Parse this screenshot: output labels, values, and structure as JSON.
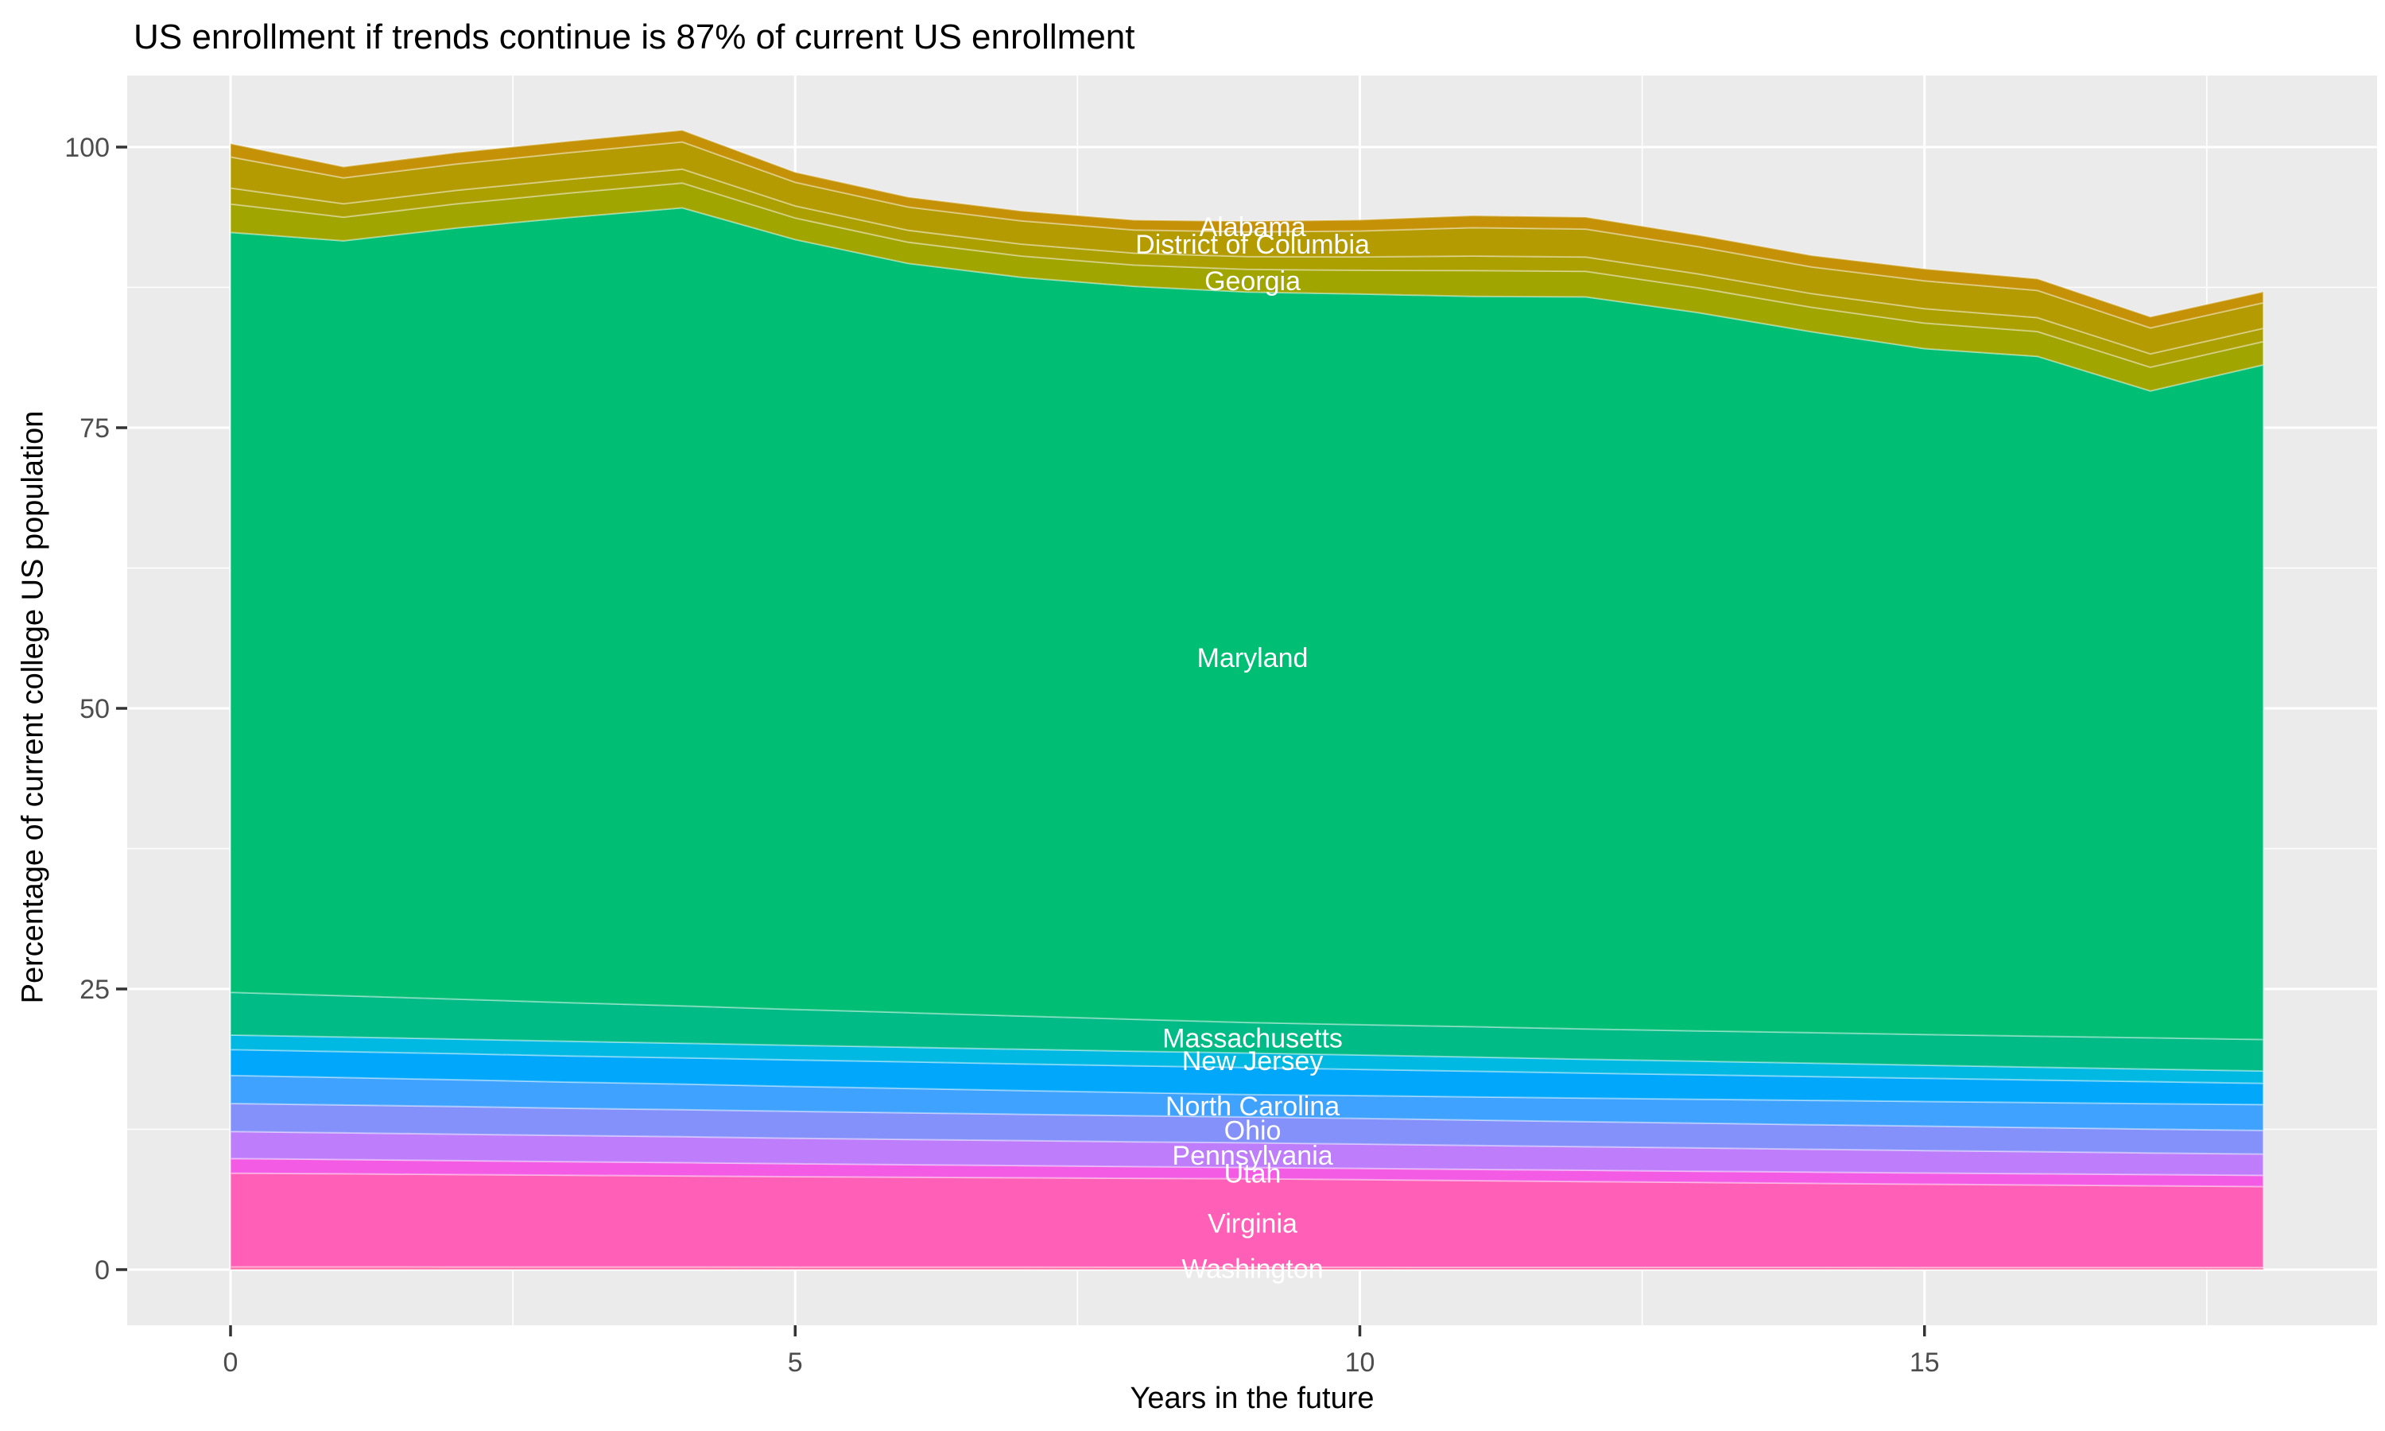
{
  "title": "US enrollment if trends continue is 87% of current US enrollment",
  "axes": {
    "x_label": "Years in the future",
    "y_label": "Percentage of current college US population",
    "x_tick_labels": [
      "0",
      "5",
      "10",
      "15"
    ],
    "y_tick_labels": [
      "0",
      "25",
      "50",
      "75",
      "100"
    ]
  },
  "colors": {
    "panel_background": "#EBEBEB",
    "grid_line": "#FFFFFF",
    "tick_text": "#4D4D4D",
    "tick_mark": "#333333",
    "axis_title_text": "#000000",
    "band_label_text": "#FFFFFF"
  },
  "chart_data": {
    "type": "area",
    "stacked": true,
    "title": "US enrollment if trends continue is 87% of current US enrollment",
    "xlabel": "Years in the future",
    "ylabel": "Percentage of current college US population",
    "x": [
      0,
      1,
      2,
      3,
      4,
      5,
      6,
      7,
      8,
      9,
      10,
      11,
      12,
      13,
      14,
      15,
      16,
      17,
      18
    ],
    "xlim": [
      0,
      18
    ],
    "ylim": [
      0,
      101.5
    ],
    "x_ticks": [
      0,
      5,
      10,
      15
    ],
    "x_minor_ticks": [
      2.5,
      7.5,
      12.5,
      17.5
    ],
    "y_ticks": [
      0,
      25,
      50,
      75,
      100
    ],
    "y_minor_ticks": [
      12.5,
      37.5,
      62.5,
      87.5
    ],
    "grid": true,
    "legend_position": "none",
    "label_year": 9.05,
    "end_total_percent": 87,
    "series": [
      {
        "name": "Washington",
        "label": "Washington",
        "color": "#FF6CA6",
        "values": [
          0.25,
          0.25,
          0.24,
          0.24,
          0.24,
          0.23,
          0.23,
          0.23,
          0.22,
          0.22,
          0.22,
          0.21,
          0.21,
          0.21,
          0.21,
          0.2,
          0.2,
          0.2,
          0.2
        ]
      },
      {
        "name": "Virginia",
        "label": "Virginia",
        "color": "#FF5FB6",
        "values": [
          8.35,
          8.29,
          8.23,
          8.17,
          8.11,
          8.05,
          8.0,
          7.96,
          7.92,
          7.88,
          7.8,
          7.72,
          7.64,
          7.56,
          7.48,
          7.41,
          7.34,
          7.27,
          7.2
        ]
      },
      {
        "name": "Utah",
        "label": "Utah",
        "color": "#F35BE5",
        "values": [
          1.3,
          1.27,
          1.24,
          1.21,
          1.18,
          1.15,
          1.12,
          1.08,
          1.04,
          1.0,
          1.0,
          1.0,
          1.0,
          1.0,
          1.0,
          1.0,
          1.0,
          1.0,
          1.0
        ]
      },
      {
        "name": "Pennsylvania",
        "label": "Pennsylvania",
        "color": "#BE7DFB",
        "values": [
          2.4,
          2.38,
          2.36,
          2.33,
          2.31,
          2.28,
          2.25,
          2.23,
          2.21,
          2.2,
          2.17,
          2.13,
          2.1,
          2.07,
          2.03,
          2.0,
          1.97,
          1.93,
          1.9
        ]
      },
      {
        "name": "Ohio",
        "label": "Ohio",
        "color": "#8491FB",
        "values": [
          2.5,
          2.48,
          2.46,
          2.43,
          2.41,
          2.39,
          2.37,
          2.34,
          2.32,
          2.3,
          2.28,
          2.26,
          2.23,
          2.21,
          2.19,
          2.17,
          2.14,
          2.12,
          2.1
        ]
      },
      {
        "name": "North Carolina",
        "label": "North Carolina",
        "color": "#3FA2FF",
        "values": [
          2.5,
          2.44,
          2.39,
          2.33,
          2.28,
          2.22,
          2.17,
          2.11,
          2.06,
          2.0,
          2.03,
          2.07,
          2.1,
          2.13,
          2.17,
          2.2,
          2.23,
          2.27,
          2.3
        ]
      },
      {
        "name": "unlabeled-blue",
        "label": "",
        "color": "#00A7FA",
        "values": [
          2.3,
          2.31,
          2.32,
          2.33,
          2.34,
          2.36,
          2.37,
          2.38,
          2.39,
          2.4,
          2.34,
          2.29,
          2.23,
          2.18,
          2.12,
          2.07,
          2.01,
          1.96,
          1.9
        ]
      },
      {
        "name": "New Jersey",
        "label": "New Jersey",
        "color": "#00B9E3",
        "values": [
          1.3,
          1.3,
          1.3,
          1.3,
          1.3,
          1.3,
          1.3,
          1.3,
          1.3,
          1.3,
          1.28,
          1.26,
          1.23,
          1.21,
          1.19,
          1.16,
          1.14,
          1.12,
          1.1
        ]
      },
      {
        "name": "Massachusetts",
        "label": "Massachusetts",
        "color": "#00BB86",
        "values": [
          3.8,
          3.68,
          3.56,
          3.44,
          3.32,
          3.2,
          3.08,
          2.96,
          2.84,
          2.72,
          2.7,
          2.7,
          2.7,
          2.7,
          2.72,
          2.74,
          2.76,
          2.78,
          2.8
        ]
      },
      {
        "name": "Maryland",
        "label": "Maryland",
        "color": "#00BE73",
        "values": [
          67.7,
          67.25,
          68.7,
          69.95,
          71.1,
          68.58,
          66.75,
          65.82,
          65.3,
          65.07,
          65.1,
          65.06,
          65.22,
          63.98,
          62.44,
          61.1,
          60.57,
          57.63,
          60.1
        ]
      },
      {
        "name": "Georgia",
        "label": "Georgia",
        "color": "#A0A500",
        "values": [
          2.53,
          2.11,
          2.14,
          2.18,
          2.21,
          1.92,
          1.89,
          1.89,
          1.89,
          2.02,
          2.11,
          2.3,
          2.27,
          2.21,
          2.18,
          2.27,
          2.21,
          2.11,
          2.08
        ]
      },
      {
        "name": "unlabeled-olive",
        "label": "",
        "color": "#AC9F00",
        "values": [
          1.42,
          1.19,
          1.21,
          1.22,
          1.24,
          1.08,
          1.06,
          1.06,
          1.06,
          1.13,
          1.19,
          1.3,
          1.28,
          1.24,
          1.22,
          1.28,
          1.24,
          1.19,
          1.17
        ]
      },
      {
        "name": "District of Columbia",
        "label": "District of Columbia",
        "color": "#B49B02",
        "values": [
          2.77,
          2.31,
          2.35,
          2.38,
          2.42,
          2.1,
          2.07,
          2.07,
          2.07,
          2.21,
          2.31,
          2.52,
          2.49,
          2.42,
          2.38,
          2.49,
          2.42,
          2.31,
          2.28
        ]
      },
      {
        "name": "Alabama",
        "label": "Alabama",
        "color": "#C59207",
        "values": [
          1.19,
          0.99,
          1.01,
          1.02,
          1.04,
          0.9,
          0.89,
          0.89,
          0.89,
          0.95,
          0.99,
          1.08,
          1.07,
          1.04,
          1.02,
          1.07,
          1.04,
          0.99,
          0.98
        ]
      }
    ]
  }
}
